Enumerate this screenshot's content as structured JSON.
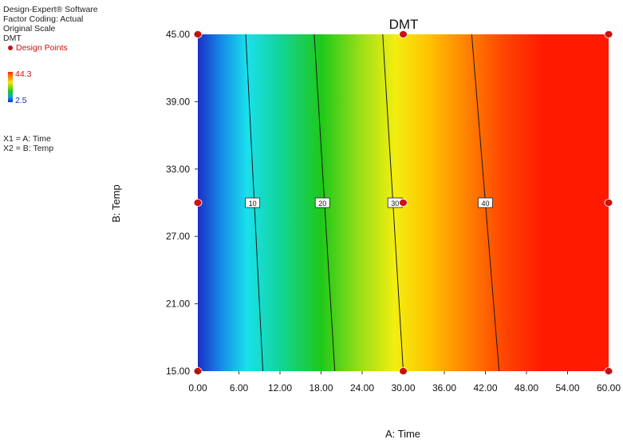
{
  "info": {
    "software": "Design-Expert® Software",
    "coding": "Factor Coding: Actual",
    "scale": "Original Scale",
    "response": "DMT",
    "design_points_label": "Design Points",
    "scale_max": "44.3",
    "scale_min": "2.5",
    "x1_def": "X1 = A: Time",
    "x2_def": "X2 = B: Temp"
  },
  "colors": {
    "design_point": "#cc1111",
    "low": "#1b2fc8",
    "high": "#ff1a00"
  },
  "chart_data": {
    "type": "heatmap",
    "title": "DMT",
    "xlabel": "A: Time",
    "ylabel": "B: Temp",
    "xlim": [
      0,
      60
    ],
    "ylim": [
      15,
      45
    ],
    "x_ticks": [
      "0.00",
      "6.00",
      "12.00",
      "18.00",
      "24.00",
      "30.00",
      "36.00",
      "42.00",
      "48.00",
      "54.00",
      "60.00"
    ],
    "y_ticks": [
      "15.00",
      "21.00",
      "27.00",
      "33.00",
      "39.00",
      "45.00"
    ],
    "color_range": [
      2.5,
      44.3
    ],
    "contours": [
      {
        "level": "10",
        "points": [
          [
            7.0,
            45
          ],
          [
            9.5,
            15
          ]
        ],
        "label_at": [
          8.0,
          30
        ]
      },
      {
        "level": "20",
        "points": [
          [
            17.0,
            45
          ],
          [
            20.0,
            15
          ]
        ],
        "label_at": [
          18.2,
          30
        ]
      },
      {
        "level": "30",
        "points": [
          [
            27.0,
            45
          ],
          [
            30.0,
            15
          ]
        ],
        "label_at": [
          28.8,
          30
        ]
      },
      {
        "level": "40",
        "points": [
          [
            40.0,
            45
          ],
          [
            44.0,
            15
          ]
        ],
        "label_at": [
          42.0,
          30
        ]
      }
    ],
    "design_points": [
      [
        0,
        15
      ],
      [
        30,
        15
      ],
      [
        60,
        15
      ],
      [
        0,
        30
      ],
      [
        30,
        30
      ],
      [
        60,
        30
      ],
      [
        0,
        45
      ],
      [
        30,
        45
      ],
      [
        60,
        45
      ]
    ]
  }
}
